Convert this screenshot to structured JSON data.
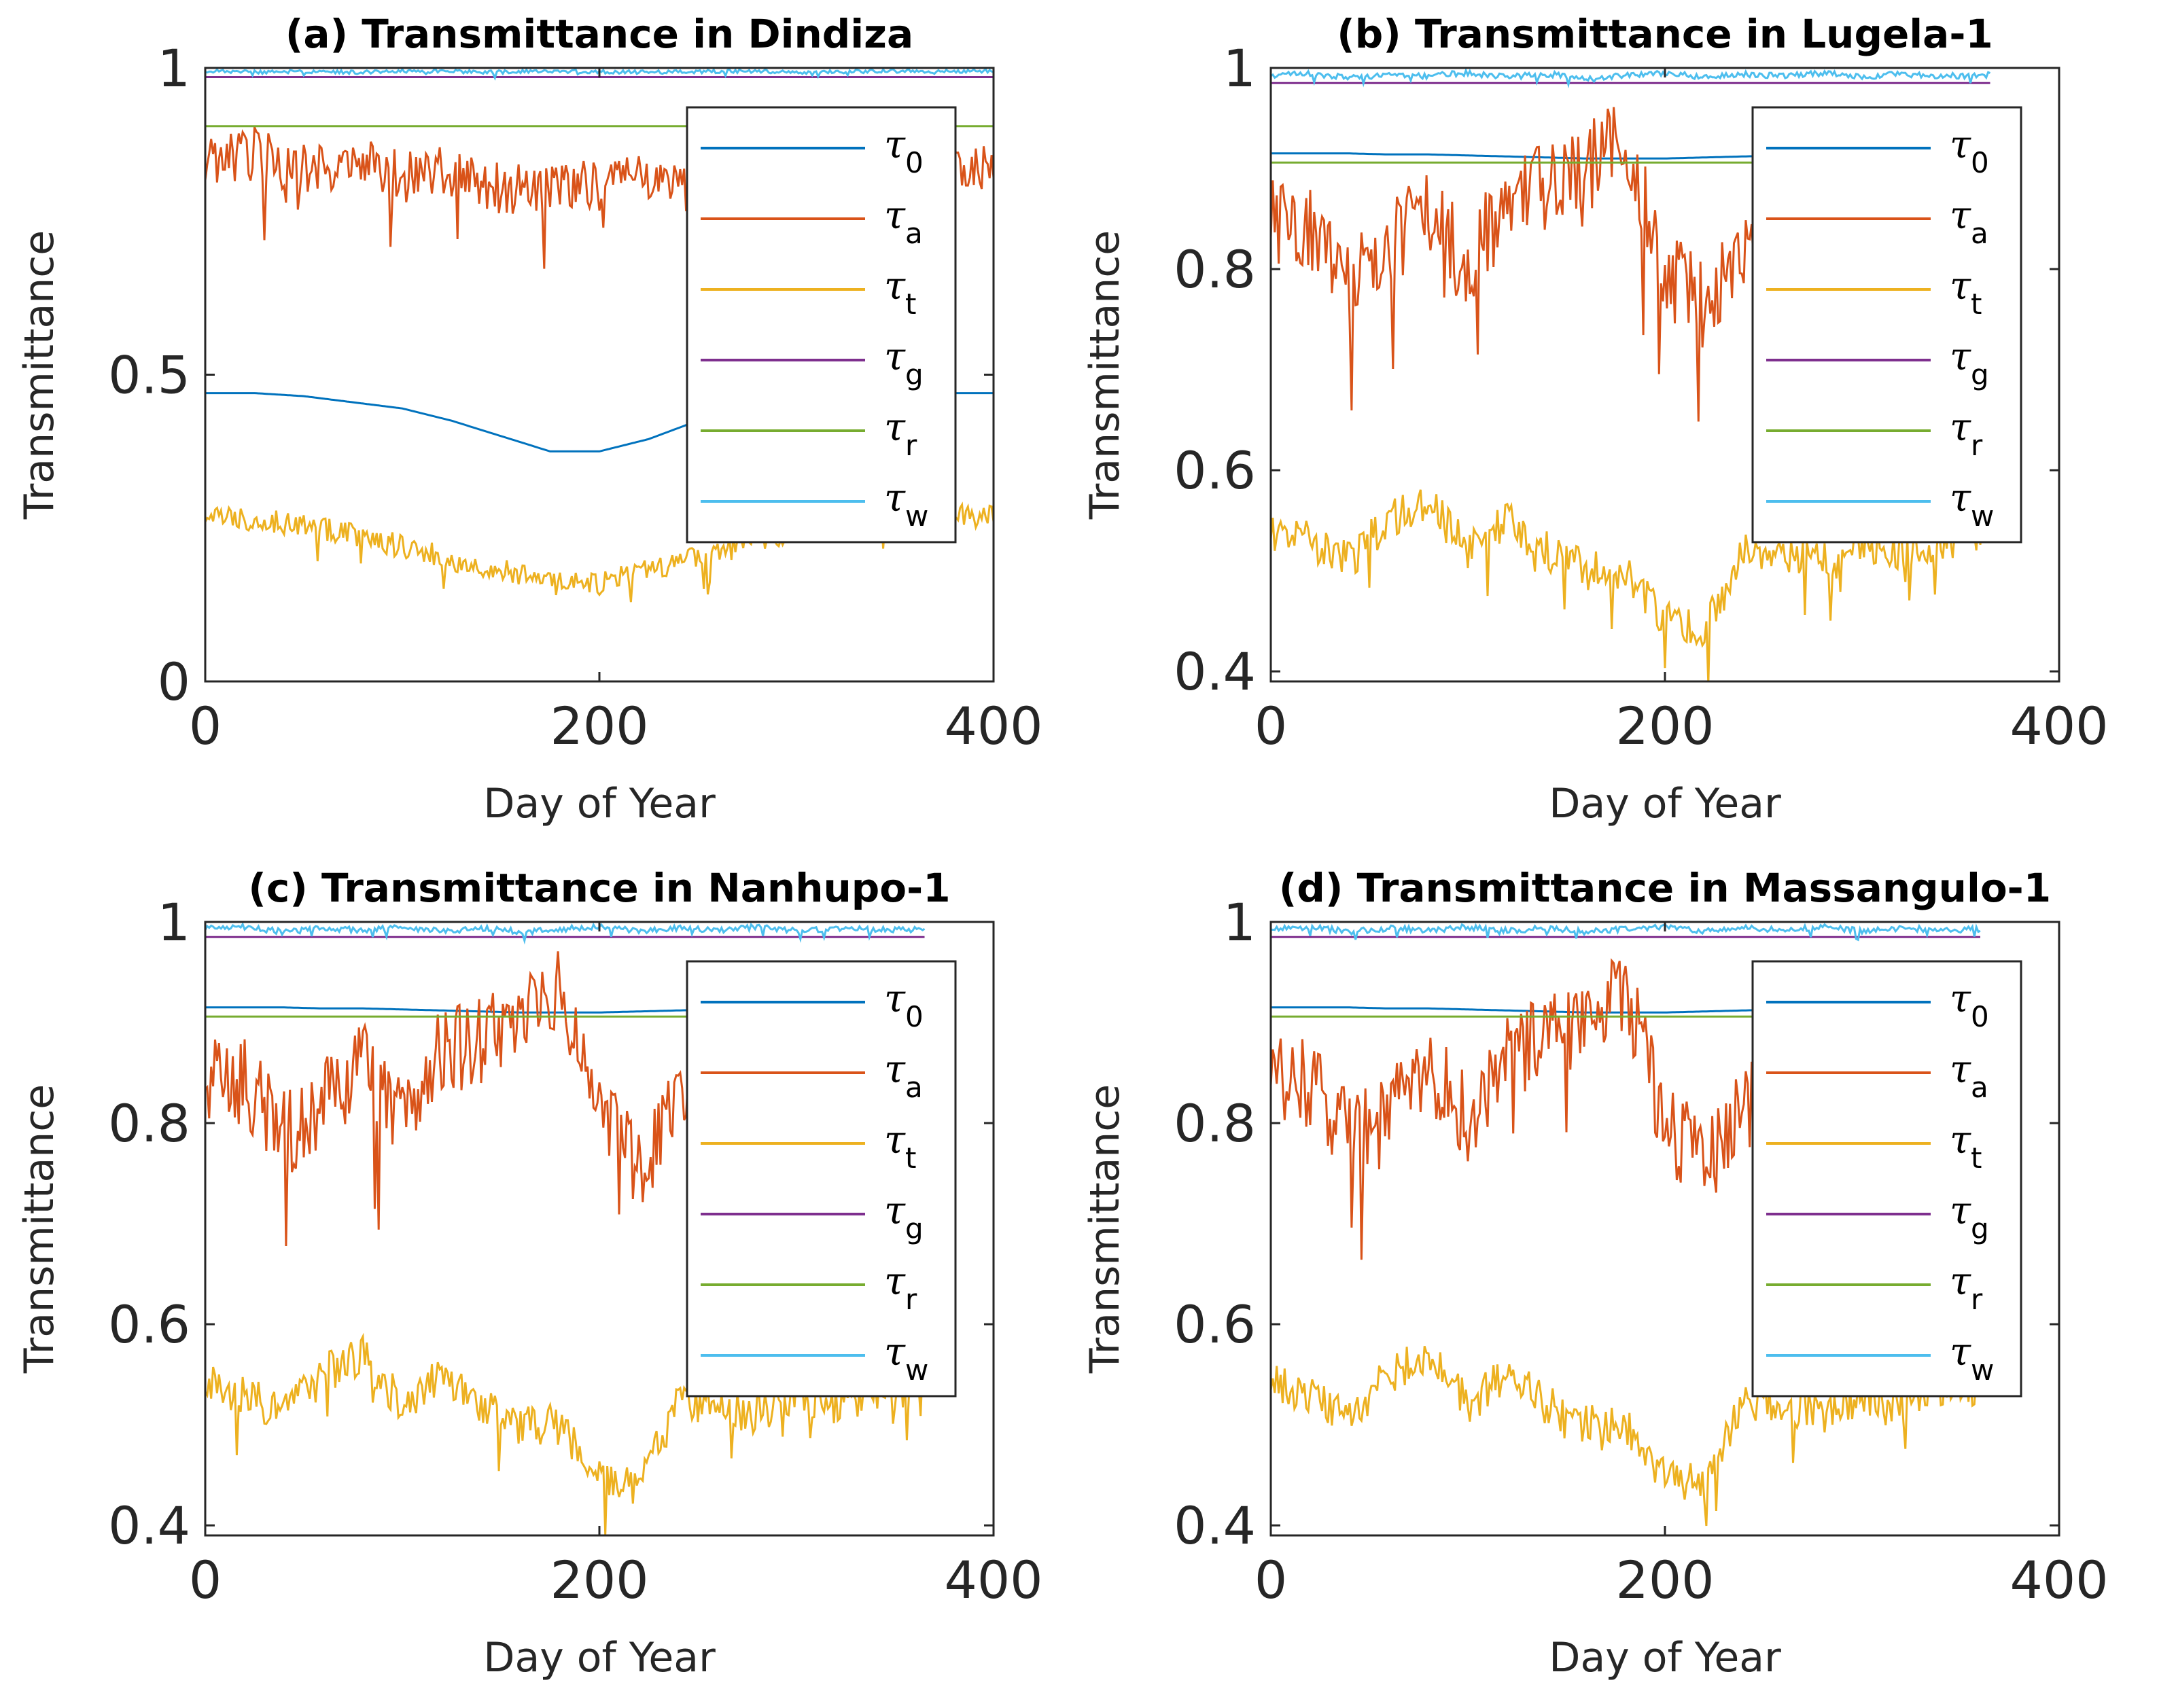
{
  "chart_data": [
    {
      "type": "line",
      "title": "(a) Transmittance in Dindiza",
      "xlabel": "Day of Year",
      "ylabel": "Transmittance",
      "xlim": [
        0,
        400
      ],
      "ylim": [
        0,
        1
      ],
      "xticks": [
        "0",
        "200",
        "400"
      ],
      "yticks": [
        "0",
        "0.5",
        "1"
      ],
      "legend_position": "top-right",
      "legend": [
        {
          "symbol": "τ",
          "sub": "0"
        },
        {
          "symbol": "τ",
          "sub": "a"
        },
        {
          "symbol": "τ",
          "sub": "t"
        },
        {
          "symbol": "τ",
          "sub": "g"
        },
        {
          "symbol": "τ",
          "sub": "r"
        },
        {
          "symbol": "τ",
          "sub": "w"
        }
      ],
      "x": [
        0,
        25,
        50,
        75,
        100,
        125,
        150,
        175,
        200,
        225,
        250,
        275,
        300,
        325,
        350,
        375,
        400
      ],
      "series": [
        {
          "name": "τ0",
          "color": "#0072BD",
          "values": [
            0.47,
            0.47,
            0.465,
            0.455,
            0.445,
            0.425,
            0.4,
            0.375,
            0.375,
            0.395,
            0.425,
            0.45,
            0.465,
            0.47,
            0.47,
            0.47,
            0.47
          ]
        },
        {
          "name": "τa",
          "color": "#D95319",
          "values": [
            0.84,
            0.86,
            0.83,
            0.85,
            0.82,
            0.83,
            0.8,
            0.81,
            0.8,
            0.82,
            0.79,
            0.83,
            0.81,
            0.84,
            0.82,
            0.83,
            0.84
          ]
        },
        {
          "name": "τt",
          "color": "#EDB120",
          "values": [
            0.27,
            0.265,
            0.255,
            0.24,
            0.22,
            0.2,
            0.18,
            0.16,
            0.16,
            0.18,
            0.2,
            0.225,
            0.245,
            0.26,
            0.265,
            0.27,
            0.27
          ]
        },
        {
          "name": "τg",
          "color": "#7E2F8E",
          "values": [
            0.985,
            0.985,
            0.985,
            0.985,
            0.985,
            0.985,
            0.985,
            0.985,
            0.985,
            0.985,
            0.985,
            0.985,
            0.985,
            0.985,
            0.985,
            0.985,
            0.985
          ]
        },
        {
          "name": "τr",
          "color": "#77AC30",
          "values": [
            0.905,
            0.905,
            0.905,
            0.905,
            0.905,
            0.905,
            0.905,
            0.905,
            0.905,
            0.905,
            0.905,
            0.905,
            0.905,
            0.905,
            0.905,
            0.905,
            0.905
          ]
        },
        {
          "name": "τw",
          "color": "#4DBEEE",
          "values": [
            0.995,
            0.993,
            0.994,
            0.993,
            0.995,
            0.994,
            0.993,
            0.995,
            0.994,
            0.993,
            0.994,
            0.995,
            0.993,
            0.994,
            0.995,
            0.994,
            0.995
          ]
        }
      ]
    },
    {
      "type": "line",
      "title": "(b) Transmittance in Lugela-1",
      "xlabel": "Day of Year",
      "ylabel": "Transmittance",
      "xlim": [
        0,
        400
      ],
      "ylim": [
        0.39,
        1
      ],
      "xticks": [
        "0",
        "200",
        "400"
      ],
      "yticks": [
        "0.4",
        "0.6",
        "0.8",
        "1"
      ],
      "legend_position": "top-right",
      "legend": [
        {
          "symbol": "τ",
          "sub": "0"
        },
        {
          "symbol": "τ",
          "sub": "a"
        },
        {
          "symbol": "τ",
          "sub": "t"
        },
        {
          "symbol": "τ",
          "sub": "g"
        },
        {
          "symbol": "τ",
          "sub": "r"
        },
        {
          "symbol": "τ",
          "sub": "w"
        }
      ],
      "x": [
        0,
        20,
        40,
        60,
        80,
        100,
        120,
        140,
        160,
        180,
        200,
        220,
        240,
        260,
        280,
        300,
        320,
        340,
        365
      ],
      "series": [
        {
          "name": "τ0",
          "color": "#0072BD",
          "values": [
            0.915,
            0.915,
            0.915,
            0.914,
            0.914,
            0.913,
            0.912,
            0.911,
            0.91,
            0.91,
            0.91,
            0.911,
            0.912,
            0.913,
            0.914,
            0.915,
            0.915,
            0.915,
            0.915
          ]
        },
        {
          "name": "τa",
          "color": "#D95319",
          "values": [
            0.85,
            0.84,
            0.79,
            0.82,
            0.86,
            0.8,
            0.87,
            0.88,
            0.9,
            0.93,
            0.8,
            0.76,
            0.81,
            0.87,
            0.85,
            0.86,
            0.84,
            0.85,
            0.85
          ]
        },
        {
          "name": "τt",
          "color": "#EDB120",
          "values": [
            0.54,
            0.53,
            0.51,
            0.55,
            0.57,
            0.52,
            0.55,
            0.52,
            0.5,
            0.5,
            0.45,
            0.44,
            0.52,
            0.52,
            0.51,
            0.53,
            0.52,
            0.53,
            0.54
          ]
        },
        {
          "name": "τg",
          "color": "#7E2F8E",
          "values": [
            0.985,
            0.985,
            0.985,
            0.985,
            0.985,
            0.985,
            0.985,
            0.985,
            0.985,
            0.985,
            0.985,
            0.985,
            0.985,
            0.985,
            0.985,
            0.985,
            0.985,
            0.985,
            0.985
          ]
        },
        {
          "name": "τr",
          "color": "#77AC30",
          "values": [
            0.906,
            0.906,
            0.906,
            0.906,
            0.906,
            0.906,
            0.906,
            0.906,
            0.906,
            0.906,
            0.906,
            0.906,
            0.906,
            0.906,
            0.906,
            0.906,
            0.906,
            0.906,
            0.906
          ]
        },
        {
          "name": "τw",
          "color": "#4DBEEE",
          "values": [
            0.993,
            0.995,
            0.99,
            0.994,
            0.992,
            0.995,
            0.991,
            0.994,
            0.99,
            0.993,
            0.995,
            0.991,
            0.994,
            0.992,
            0.995,
            0.991,
            0.994,
            0.992,
            0.993
          ]
        }
      ]
    },
    {
      "type": "line",
      "title": "(c) Transmittance in Nanhupo-1",
      "xlabel": "Day of Year",
      "ylabel": "Transmittance",
      "xlim": [
        0,
        400
      ],
      "ylim": [
        0.39,
        1
      ],
      "xticks": [
        "0",
        "200",
        "400"
      ],
      "yticks": [
        "0.4",
        "0.6",
        "0.8",
        "1"
      ],
      "legend_position": "top-right",
      "legend": [
        {
          "symbol": "τ",
          "sub": "0"
        },
        {
          "symbol": "τ",
          "sub": "a"
        },
        {
          "symbol": "τ",
          "sub": "t"
        },
        {
          "symbol": "τ",
          "sub": "g"
        },
        {
          "symbol": "τ",
          "sub": "r"
        },
        {
          "symbol": "τ",
          "sub": "w"
        }
      ],
      "x": [
        0,
        20,
        40,
        60,
        80,
        100,
        120,
        140,
        160,
        180,
        200,
        220,
        240,
        260,
        280,
        300,
        320,
        340,
        365
      ],
      "series": [
        {
          "name": "τ0",
          "color": "#0072BD",
          "values": [
            0.915,
            0.915,
            0.915,
            0.914,
            0.914,
            0.913,
            0.912,
            0.911,
            0.91,
            0.91,
            0.91,
            0.911,
            0.912,
            0.913,
            0.914,
            0.915,
            0.915,
            0.915,
            0.915
          ]
        },
        {
          "name": "τa",
          "color": "#D95319",
          "values": [
            0.85,
            0.84,
            0.79,
            0.82,
            0.86,
            0.8,
            0.87,
            0.88,
            0.9,
            0.93,
            0.8,
            0.76,
            0.81,
            0.87,
            0.85,
            0.86,
            0.84,
            0.85,
            0.85
          ]
        },
        {
          "name": "τt",
          "color": "#EDB120",
          "values": [
            0.54,
            0.53,
            0.51,
            0.55,
            0.57,
            0.52,
            0.55,
            0.52,
            0.5,
            0.5,
            0.45,
            0.44,
            0.52,
            0.52,
            0.51,
            0.53,
            0.52,
            0.53,
            0.54
          ]
        },
        {
          "name": "τg",
          "color": "#7E2F8E",
          "values": [
            0.985,
            0.985,
            0.985,
            0.985,
            0.985,
            0.985,
            0.985,
            0.985,
            0.985,
            0.985,
            0.985,
            0.985,
            0.985,
            0.985,
            0.985,
            0.985,
            0.985,
            0.985,
            0.985
          ]
        },
        {
          "name": "τr",
          "color": "#77AC30",
          "values": [
            0.906,
            0.906,
            0.906,
            0.906,
            0.906,
            0.906,
            0.906,
            0.906,
            0.906,
            0.906,
            0.906,
            0.906,
            0.906,
            0.906,
            0.906,
            0.906,
            0.906,
            0.906,
            0.906
          ]
        },
        {
          "name": "τw",
          "color": "#4DBEEE",
          "values": [
            0.993,
            0.995,
            0.99,
            0.994,
            0.992,
            0.995,
            0.991,
            0.994,
            0.99,
            0.993,
            0.995,
            0.991,
            0.994,
            0.992,
            0.995,
            0.991,
            0.994,
            0.992,
            0.993
          ]
        }
      ]
    },
    {
      "type": "line",
      "title": "(d) Transmittance in Massangulo-1",
      "xlabel": "Day of Year",
      "ylabel": "Transmittance",
      "xlim": [
        0,
        400
      ],
      "ylim": [
        0.39,
        1
      ],
      "xticks": [
        "0",
        "200",
        "400"
      ],
      "yticks": [
        "0.4",
        "0.6",
        "0.8",
        "1"
      ],
      "legend_position": "top-right",
      "legend": [
        {
          "symbol": "τ",
          "sub": "0"
        },
        {
          "symbol": "τ",
          "sub": "a"
        },
        {
          "symbol": "τ",
          "sub": "t"
        },
        {
          "symbol": "τ",
          "sub": "g"
        },
        {
          "symbol": "τ",
          "sub": "r"
        },
        {
          "symbol": "τ",
          "sub": "w"
        }
      ],
      "x": [
        0,
        20,
        40,
        60,
        80,
        100,
        120,
        140,
        160,
        180,
        200,
        220,
        240,
        260,
        280,
        300,
        320,
        340,
        360
      ],
      "series": [
        {
          "name": "τ0",
          "color": "#0072BD",
          "values": [
            0.915,
            0.915,
            0.915,
            0.914,
            0.914,
            0.913,
            0.912,
            0.911,
            0.91,
            0.91,
            0.91,
            0.911,
            0.912,
            0.913,
            0.914,
            0.915,
            0.915,
            0.915,
            0.915
          ]
        },
        {
          "name": "τa",
          "color": "#D95319",
          "values": [
            0.85,
            0.84,
            0.79,
            0.82,
            0.86,
            0.8,
            0.87,
            0.88,
            0.9,
            0.93,
            0.8,
            0.76,
            0.81,
            0.87,
            0.85,
            0.86,
            0.84,
            0.85,
            0.85
          ]
        },
        {
          "name": "τt",
          "color": "#EDB120",
          "values": [
            0.54,
            0.53,
            0.51,
            0.55,
            0.57,
            0.52,
            0.55,
            0.52,
            0.5,
            0.5,
            0.45,
            0.44,
            0.52,
            0.52,
            0.51,
            0.53,
            0.52,
            0.53,
            0.54
          ]
        },
        {
          "name": "τg",
          "color": "#7E2F8E",
          "values": [
            0.985,
            0.985,
            0.985,
            0.985,
            0.985,
            0.985,
            0.985,
            0.985,
            0.985,
            0.985,
            0.985,
            0.985,
            0.985,
            0.985,
            0.985,
            0.985,
            0.985,
            0.985,
            0.985
          ]
        },
        {
          "name": "τr",
          "color": "#77AC30",
          "values": [
            0.906,
            0.906,
            0.906,
            0.906,
            0.906,
            0.906,
            0.906,
            0.906,
            0.906,
            0.906,
            0.906,
            0.906,
            0.906,
            0.906,
            0.906,
            0.906,
            0.906,
            0.906,
            0.906
          ]
        },
        {
          "name": "τw",
          "color": "#4DBEEE",
          "values": [
            0.993,
            0.995,
            0.99,
            0.994,
            0.992,
            0.995,
            0.991,
            0.994,
            0.99,
            0.993,
            0.995,
            0.991,
            0.994,
            0.992,
            0.995,
            0.991,
            0.994,
            0.992,
            0.993
          ]
        }
      ]
    }
  ]
}
